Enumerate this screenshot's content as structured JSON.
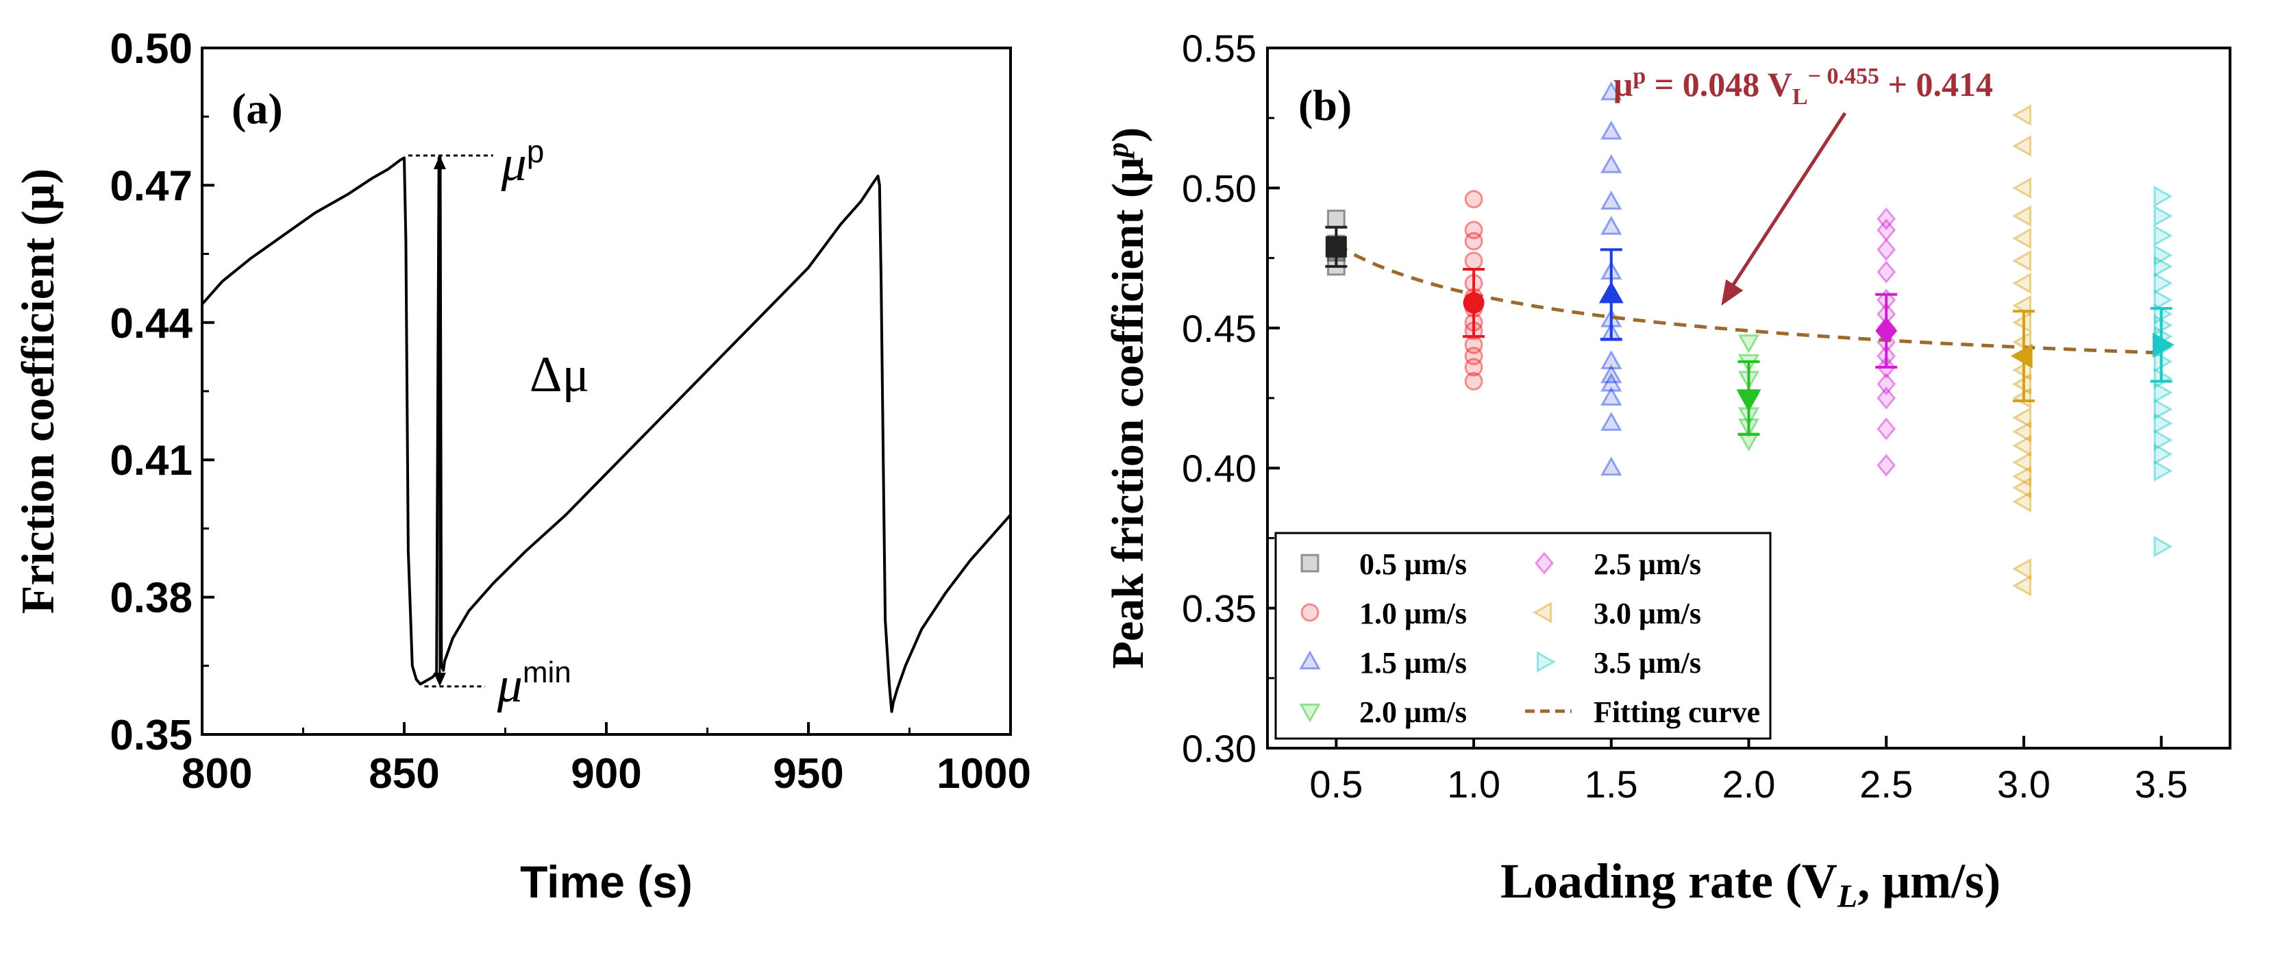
{
  "chart_data": [
    {
      "type": "line",
      "panel_label": "(a)",
      "xlabel": "Time (s)",
      "ylabel": "Friction coefficient (μ)",
      "xlim": [
        800,
        1000
      ],
      "ylim": [
        0.35,
        0.5
      ],
      "xticks": [
        "800",
        "850",
        "900",
        "950",
        "1000"
      ],
      "yticks": [
        "0.35",
        "0.38",
        "0.41",
        "0.44",
        "0.47",
        "0.50"
      ],
      "series": [
        {
          "x": [
            800,
            805,
            812,
            820,
            828,
            836,
            842,
            846,
            849,
            850,
            850.4,
            851,
            852,
            853,
            854,
            856,
            857,
            858,
            858.6,
            858.9,
            859.2,
            859.7,
            860,
            862,
            866,
            872,
            880,
            890,
            900,
            910,
            920,
            930,
            940,
            950,
            958,
            963,
            966,
            967.2,
            967.6,
            968,
            968.5,
            969,
            970,
            970.6,
            971,
            972,
            974,
            978,
            984,
            990,
            995,
            1000
          ],
          "y": [
            0.444,
            0.449,
            0.454,
            0.459,
            0.464,
            0.468,
            0.4715,
            0.4735,
            0.4755,
            0.476,
            0.458,
            0.39,
            0.365,
            0.362,
            0.361,
            0.362,
            0.3625,
            0.3635,
            0.476,
            0.476,
            0.365,
            0.364,
            0.366,
            0.371,
            0.377,
            0.383,
            0.39,
            0.398,
            0.407,
            0.416,
            0.425,
            0.434,
            0.443,
            0.452,
            0.4615,
            0.4665,
            0.4705,
            0.472,
            0.47,
            0.448,
            0.41,
            0.375,
            0.361,
            0.355,
            0.357,
            0.36,
            0.365,
            0.373,
            0.381,
            0.388,
            0.393,
            0.398
          ]
        }
      ],
      "annotations": {
        "mu_peak": "μ",
        "mu_peak_sup": "p",
        "mu_min": "μ",
        "mu_min_sup": "min",
        "delta": "Δμ"
      },
      "grid": false
    },
    {
      "type": "scatter",
      "panel_label": "(b)",
      "xlabel": "Loading rate (V",
      "xlabel_sub": "L",
      "xlabel_tail": ", μm/s)",
      "ylabel": "Peak friction coefficient (μ",
      "ylabel_sup": "p",
      "ylabel_tail": ")",
      "xlim": [
        0.25,
        3.75
      ],
      "ylim": [
        0.3,
        0.55
      ],
      "xticks": [
        "0.5",
        "1.0",
        "1.5",
        "2.0",
        "2.5",
        "3.0",
        "3.5"
      ],
      "yticks": [
        "0.30",
        "0.35",
        "0.40",
        "0.45",
        "0.50",
        "0.55"
      ],
      "equation": {
        "lhs": "μ",
        "lhs_sup": "p",
        "mid": " = 0.048 V",
        "sub": "L",
        "exp": "− 0.455",
        "rhs": " + 0.414"
      },
      "series": [
        {
          "name": "0.5 μm/s",
          "x": 0.5,
          "marker": "square",
          "color": "#222222",
          "points": [
            0.489,
            0.48,
            0.477,
            0.472
          ],
          "mean": 0.479,
          "err": 0.007
        },
        {
          "name": "1.0 μm/s",
          "x": 1.0,
          "marker": "circle",
          "color": "#e8191e",
          "points": [
            0.496,
            0.485,
            0.481,
            0.474,
            0.466,
            0.461,
            0.457,
            0.452,
            0.449,
            0.444,
            0.44,
            0.436,
            0.431
          ],
          "mean": 0.459,
          "err": 0.012
        },
        {
          "name": "1.5 μm/s",
          "x": 1.5,
          "marker": "triangle-up",
          "color": "#1c3fe0",
          "points": [
            0.534,
            0.52,
            0.508,
            0.495,
            0.486,
            0.47,
            0.453,
            0.448,
            0.438,
            0.433,
            0.43,
            0.425,
            0.416,
            0.4
          ],
          "mean": 0.462,
          "err": 0.016
        },
        {
          "name": "2.0 μm/s",
          "x": 2.0,
          "marker": "triangle-down",
          "color": "#22c322",
          "points": [
            0.445,
            0.438,
            0.432,
            0.424,
            0.419,
            0.415,
            0.41
          ],
          "mean": 0.425,
          "err": 0.013
        },
        {
          "name": "2.5 μm/s",
          "x": 2.5,
          "marker": "diamond",
          "color": "#d21ed2",
          "points": [
            0.489,
            0.485,
            0.478,
            0.47,
            0.46,
            0.455,
            0.45,
            0.445,
            0.44,
            0.436,
            0.43,
            0.425,
            0.414,
            0.401
          ],
          "mean": 0.449,
          "err": 0.013
        },
        {
          "name": "3.0 μm/s",
          "x": 3.0,
          "marker": "triangle-left",
          "color": "#d4a017",
          "points": [
            0.526,
            0.515,
            0.5,
            0.49,
            0.482,
            0.474,
            0.466,
            0.458,
            0.452,
            0.445,
            0.44,
            0.435,
            0.43,
            0.425,
            0.418,
            0.413,
            0.408,
            0.402,
            0.397,
            0.393,
            0.388,
            0.364,
            0.358
          ],
          "mean": 0.44,
          "err": 0.016
        },
        {
          "name": "3.5 μm/s",
          "x": 3.5,
          "marker": "triangle-right",
          "color": "#1ec8c8",
          "points": [
            0.497,
            0.49,
            0.483,
            0.476,
            0.472,
            0.466,
            0.46,
            0.455,
            0.451,
            0.447,
            0.443,
            0.438,
            0.432,
            0.427,
            0.421,
            0.416,
            0.41,
            0.405,
            0.399,
            0.372
          ],
          "mean": 0.444,
          "err": 0.013
        }
      ],
      "fit": {
        "name": "Fitting curve",
        "a": 0.048,
        "b": -0.455,
        "c": 0.414,
        "color": "#9c6a2e",
        "x_range": [
          0.5,
          3.5
        ]
      },
      "arrow_color": "#a1303a",
      "legend": {
        "position": "bottom-left"
      },
      "grid": false
    }
  ]
}
